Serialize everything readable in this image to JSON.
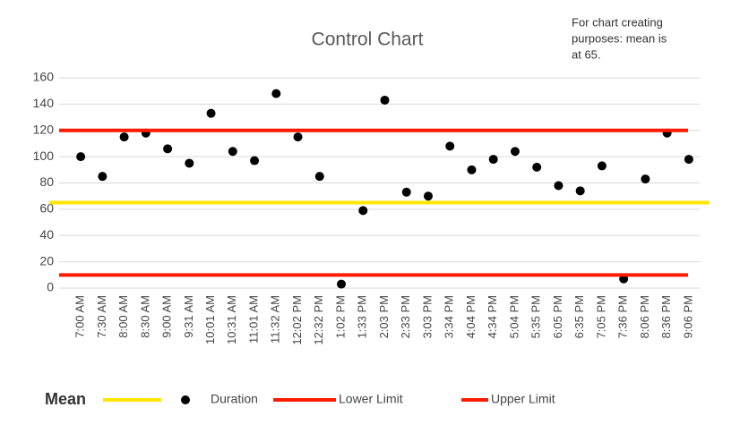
{
  "chart_data": {
    "type": "control",
    "title": "Control Chart",
    "annotation": [
      "For chart creating",
      "purposes: mean is",
      "at 65."
    ],
    "categories": [
      "7:00 AM",
      "7:30 AM",
      "8:00 AM",
      "8:30 AM",
      "9:00 AM",
      "9:31 AM",
      "10:01 AM",
      "10:31 AM",
      "11:01 AM",
      "11:32 AM",
      "12:02 PM",
      "12:32 PM",
      "1:02 PM",
      "1:33 PM",
      "2:03 PM",
      "2:33 PM",
      "3:03 PM",
      "3:34 PM",
      "4:04 PM",
      "4:34 PM",
      "5:04 PM",
      "5:35 PM",
      "6:05 PM",
      "6:35 PM",
      "7:05 PM",
      "7:36 PM",
      "8:06 PM",
      "8:36 PM",
      "9:06 PM"
    ],
    "series": [
      {
        "name": "Mean",
        "color": "#ffe600",
        "value": 65
      },
      {
        "name": "Duration",
        "color": "#000000",
        "values": [
          100,
          85,
          115,
          118,
          106,
          95,
          133,
          104,
          97,
          148,
          115,
          85,
          3,
          59,
          143,
          73,
          70,
          108,
          90,
          98,
          104,
          92,
          78,
          74,
          93,
          7,
          83,
          118,
          98
        ]
      },
      {
        "name": "Lower Limit",
        "color": "#ff1a00",
        "value": 10
      },
      {
        "name": "Upper Limit",
        "color": "#ff1a00",
        "value": 120
      }
    ],
    "ylim": [
      0,
      160
    ],
    "yticks": [
      0,
      20,
      40,
      60,
      80,
      100,
      120,
      140,
      160
    ],
    "grid": true
  }
}
